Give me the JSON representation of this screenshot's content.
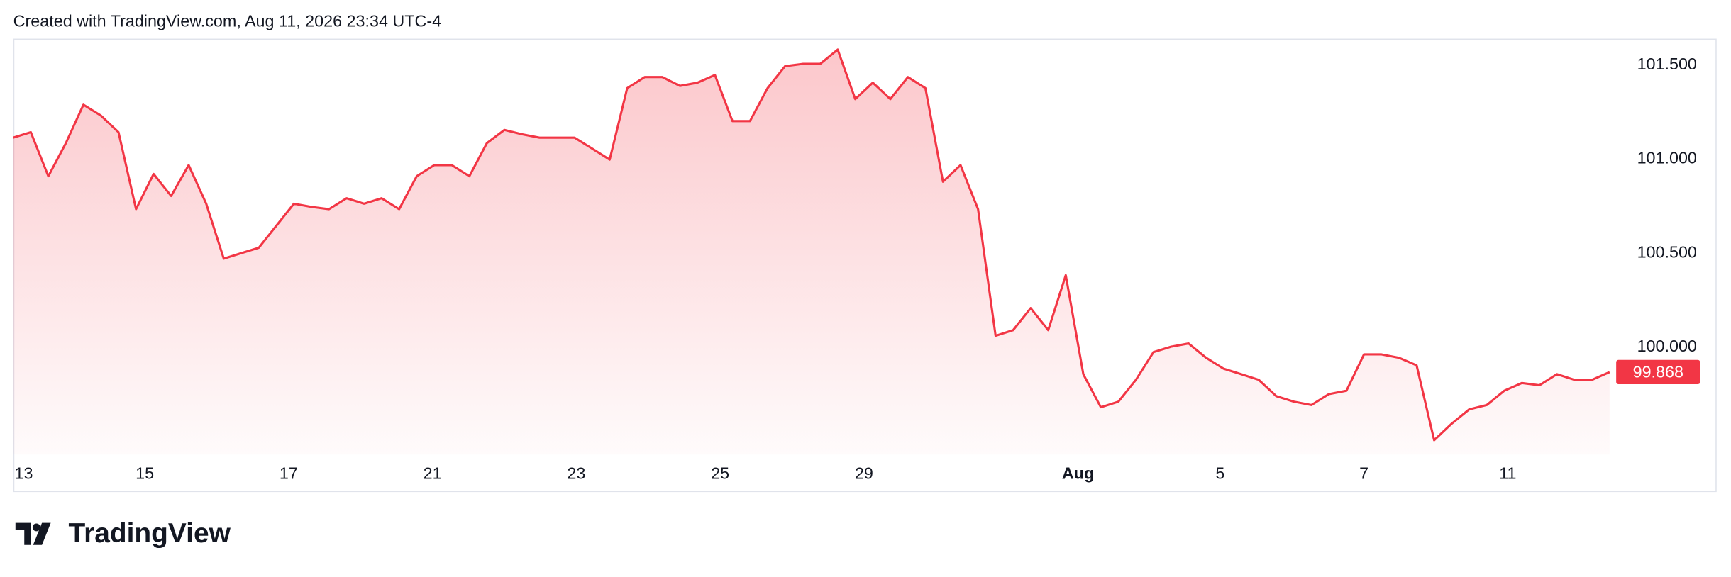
{
  "header": {
    "caption": "Created with TradingView.com, Aug 11, 2026 23:34 UTC-4"
  },
  "footer": {
    "brand": "TradingView"
  },
  "chart_data": {
    "type": "area",
    "series": [
      {
        "color": "#f23645",
        "values": [
          101.114,
          101.143,
          100.909,
          101.085,
          101.289,
          101.231,
          101.143,
          100.734,
          100.921,
          100.804,
          100.968,
          100.763,
          100.471,
          100.5,
          100.529,
          100.646,
          100.763,
          100.746,
          100.734,
          100.792,
          100.763,
          100.792,
          100.734,
          100.909,
          100.968,
          100.968,
          100.909,
          101.085,
          101.155,
          101.132,
          101.114,
          101.114,
          101.114,
          101.056,
          100.997,
          101.377,
          101.436,
          101.436,
          101.389,
          101.406,
          101.447,
          101.202,
          101.202,
          101.377,
          101.494,
          101.506,
          101.506,
          101.582,
          101.319,
          101.406,
          101.319,
          101.436,
          101.377,
          100.88,
          100.968,
          100.734,
          100.061,
          100.091,
          100.208,
          100.091,
          100.383,
          99.857,
          99.681,
          99.711,
          99.827,
          99.974,
          100.003,
          100.02,
          99.944,
          99.886,
          99.857,
          99.827,
          99.74,
          99.711,
          99.693,
          99.751,
          99.769,
          99.962,
          99.962,
          99.944,
          99.904,
          99.506,
          99.594,
          99.67,
          99.693,
          99.769,
          99.81,
          99.798,
          99.857,
          99.827,
          99.827,
          99.868
        ]
      }
    ],
    "ylim": [
      99.43,
      101.64
    ],
    "yticks": [
      {
        "value": 100,
        "label": "100.000"
      },
      {
        "value": 100.5,
        "label": "100.500"
      },
      {
        "value": 101,
        "label": "101.000"
      },
      {
        "value": 101.5,
        "label": "101.500"
      }
    ],
    "xlim": [
      0,
      91
    ],
    "xticks": [
      {
        "value": 0.6,
        "label": "13"
      },
      {
        "value": 7.5,
        "label": "15"
      },
      {
        "value": 15.7,
        "label": "17"
      },
      {
        "value": 23.9,
        "label": "21"
      },
      {
        "value": 32.1,
        "label": "23"
      },
      {
        "value": 40.3,
        "label": "25"
      },
      {
        "value": 48.5,
        "label": "29"
      },
      {
        "value": 60.7,
        "label": "Aug"
      },
      {
        "value": 68.8,
        "label": "5"
      },
      {
        "value": 77.0,
        "label": "7"
      },
      {
        "value": 85.2,
        "label": "11"
      }
    ]
  }
}
